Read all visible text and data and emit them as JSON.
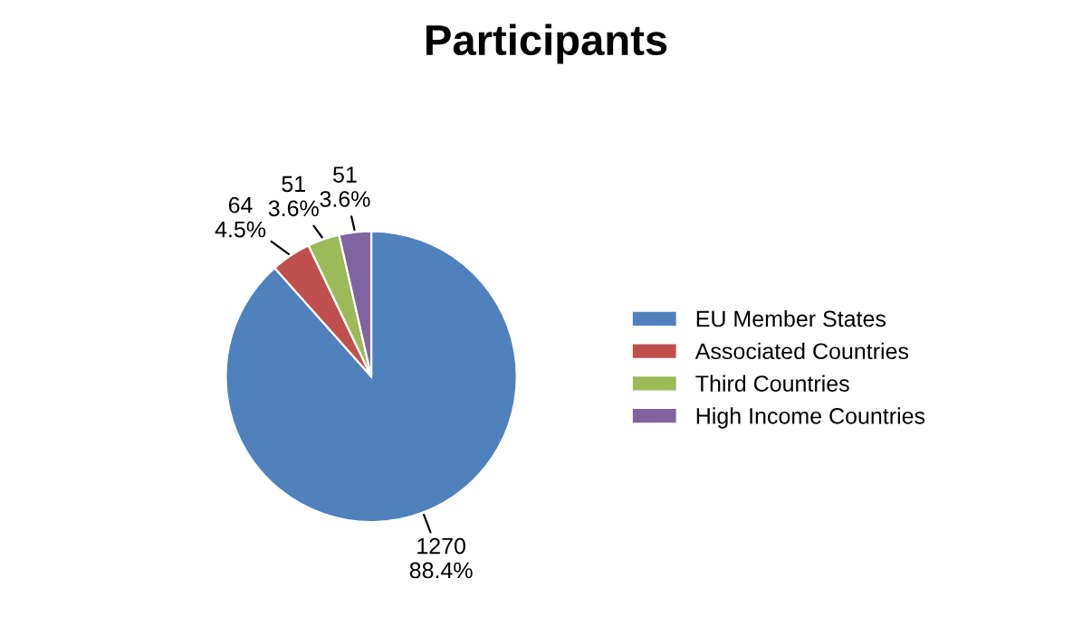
{
  "chart_data": {
    "type": "pie",
    "title": "Participants",
    "categories": [
      "EU Member States",
      "Associated Countries",
      "Third Countries",
      "High Income Countries"
    ],
    "values": [
      1270,
      64,
      51,
      51
    ],
    "value_labels": [
      "1270\n88.4%",
      "64\n4.5%",
      "51\n3.6%",
      "51\n3.6%"
    ],
    "colors": [
      "#4f81bd",
      "#c0504d",
      "#9bbb59",
      "#8064a2"
    ],
    "legend": "right"
  }
}
